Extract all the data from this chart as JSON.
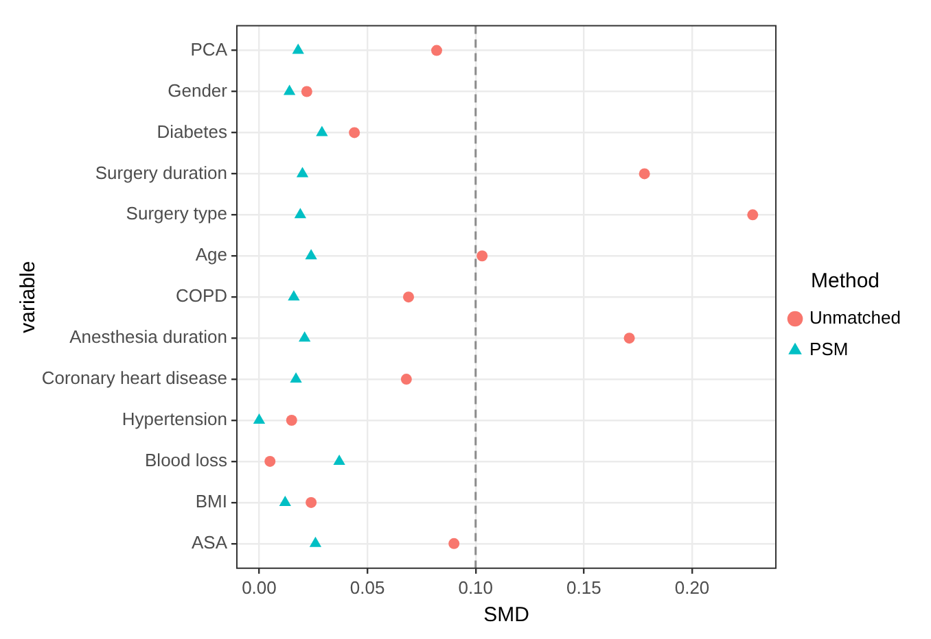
{
  "chart_data": {
    "type": "scatter",
    "orientation": "horizontal",
    "xlabel": "SMD",
    "ylabel": "variable",
    "legend_title": "Method",
    "legend": "right",
    "grid": true,
    "categories": [
      "PCA",
      "Gender",
      "Diabetes",
      "Surgery duration",
      "Surgery type",
      "Age",
      "COPD",
      "Anesthesia duration",
      "Coronary heart disease",
      "Hypertension",
      "Blood loss",
      "BMI",
      "ASA"
    ],
    "xlim": [
      -0.0103,
      0.2387
    ],
    "xticks": [
      {
        "value": 0,
        "label": "0.00"
      },
      {
        "value": 0.05,
        "label": "0.05"
      },
      {
        "value": 0.1,
        "label": "0.10"
      },
      {
        "value": 0.15,
        "label": "0.15"
      },
      {
        "value": 0.2,
        "label": "0.20"
      }
    ],
    "ref_lines": [
      {
        "axis": "x",
        "value": 0.1,
        "color": "#8c8c8c",
        "line_style": "dashed"
      }
    ],
    "series": [
      {
        "name": "Unmatched",
        "color": "#f8766d",
        "marker": "circle",
        "values": [
          0.082,
          0.022,
          0.044,
          0.178,
          0.228,
          0.103,
          0.069,
          0.171,
          0.068,
          0.015,
          0.005,
          0.024,
          0.09
        ]
      },
      {
        "name": "PSM",
        "color": "#00bfc4",
        "marker": "triangle",
        "values": [
          0.018,
          0.014,
          0.029,
          0.02,
          0.019,
          0.024,
          0.016,
          0.021,
          0.017,
          0.0,
          0.037,
          0.012,
          0.026
        ]
      }
    ]
  }
}
